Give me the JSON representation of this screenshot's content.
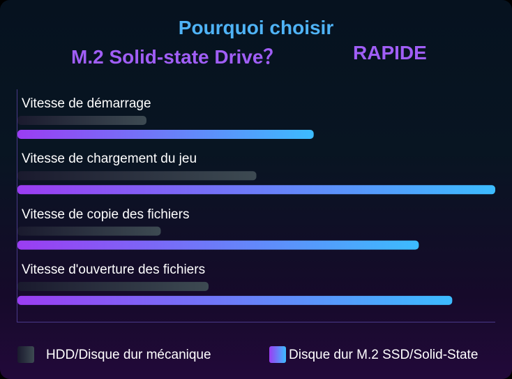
{
  "title": {
    "line1": "Pourquoi choisir",
    "line2": "M.2 Solid-state Drive？",
    "line2_tag": "RAPIDE"
  },
  "legend": {
    "hdd": "HDD/Disque dur mécanique",
    "ssd": "Disque dur M.2 SSD/Solid-State"
  },
  "colors": {
    "title_blue": "#4fb3f6",
    "title_purple": "#a05ef6",
    "hdd_start": "#1a1a2e",
    "hdd_end": "#3d4a52",
    "ssd_start": "#9b3df2",
    "ssd_end": "#3cbcff",
    "axis": "#4a3a8a"
  },
  "chart_data": {
    "type": "bar",
    "orientation": "horizontal",
    "categories": [
      "Vitesse de démarrage",
      "Vitesse de chargement du jeu",
      "Vitesse de copie des fichiers",
      "Vitesse d'ouverture des fichiers"
    ],
    "series": [
      {
        "name": "HDD/Disque dur mécanique",
        "values": [
          27,
          50,
          30,
          40
        ]
      },
      {
        "name": "Disque dur M.2 SSD/Solid-State",
        "values": [
          62,
          100,
          84,
          91
        ]
      }
    ],
    "xlim": [
      0,
      100
    ],
    "grid": false,
    "legend_position": "bottom"
  }
}
